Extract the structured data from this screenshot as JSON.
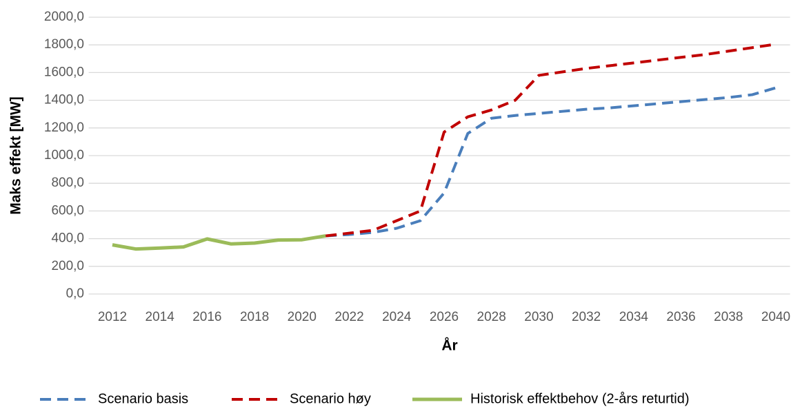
{
  "chart_data": {
    "type": "line",
    "x_label": "År",
    "y_label": "Maks effekt [MW]",
    "x": [
      2012,
      2013,
      2014,
      2015,
      2016,
      2017,
      2018,
      2019,
      2020,
      2021,
      2022,
      2023,
      2024,
      2025,
      2026,
      2027,
      2028,
      2029,
      2030,
      2031,
      2032,
      2033,
      2034,
      2035,
      2036,
      2037,
      2038,
      2039,
      2040
    ],
    "series": [
      {
        "name": "Scenario basis",
        "color": "#4a7ebb",
        "dashed": true,
        "values": [
          null,
          null,
          null,
          null,
          null,
          null,
          null,
          null,
          null,
          420,
          430,
          445,
          475,
          530,
          730,
          1160,
          1270,
          1290,
          1305,
          1320,
          1335,
          1345,
          1360,
          1375,
          1390,
          1405,
          1420,
          1440,
          1490
        ]
      },
      {
        "name": "Scenario høy",
        "color": "#c00000",
        "dashed": true,
        "values": [
          null,
          null,
          null,
          null,
          null,
          null,
          null,
          null,
          null,
          420,
          440,
          460,
          530,
          600,
          1170,
          1280,
          1330,
          1400,
          1580,
          1605,
          1630,
          1650,
          1670,
          1690,
          1710,
          1730,
          1755,
          1780,
          1805
        ]
      },
      {
        "name": "Historisk effektbehov (2-års returtid)",
        "color": "#9bbb59",
        "dashed": false,
        "values": [
          355,
          325,
          332,
          340,
          398,
          362,
          368,
          390,
          392,
          420,
          null,
          null,
          null,
          null,
          null,
          null,
          null,
          null,
          null,
          null,
          null,
          null,
          null,
          null,
          null,
          null,
          null,
          null,
          null
        ]
      }
    ],
    "xlim": [
      2011,
      2040.6
    ],
    "xticks": [
      2012,
      2014,
      2016,
      2018,
      2020,
      2022,
      2024,
      2026,
      2028,
      2030,
      2032,
      2034,
      2036,
      2038,
      2040
    ],
    "ylim": [
      0,
      2000
    ],
    "yticks": [
      {
        "value": 0,
        "label": "0,0"
      },
      {
        "value": 200,
        "label": "200,0"
      },
      {
        "value": 400,
        "label": "400,0"
      },
      {
        "value": 600,
        "label": "600,0"
      },
      {
        "value": 800,
        "label": "800,0"
      },
      {
        "value": 1000,
        "label": "1000,0"
      },
      {
        "value": 1200,
        "label": "1200,0"
      },
      {
        "value": 1400,
        "label": "1400,0"
      },
      {
        "value": 1600,
        "label": "1600,0"
      },
      {
        "value": 1800,
        "label": "1800,0"
      },
      {
        "value": 2000,
        "label": "2000,0"
      }
    ],
    "grid": true,
    "legend": "bottom"
  }
}
